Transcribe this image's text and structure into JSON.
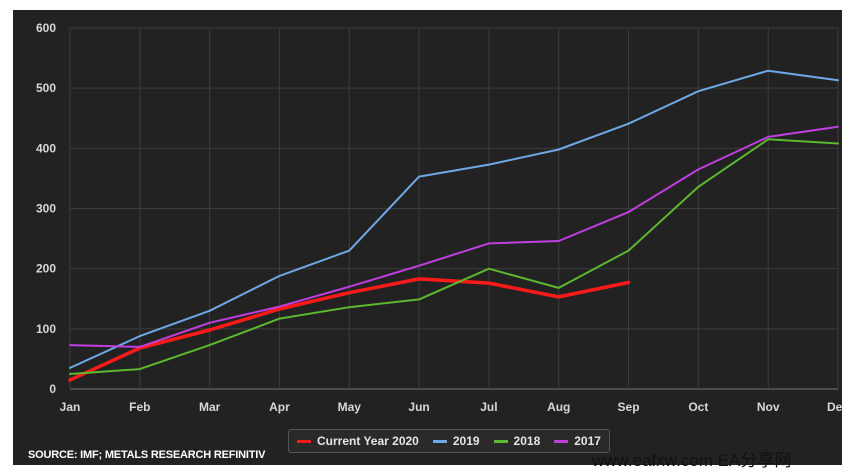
{
  "chart_data": {
    "type": "line",
    "categories": [
      "Jan",
      "Feb",
      "Mar",
      "Apr",
      "May",
      "Jun",
      "Jul",
      "Aug",
      "Sep",
      "Oct",
      "Nov",
      "Dec"
    ],
    "y_ticks": [
      "0",
      "100",
      "200",
      "300",
      "400",
      "500",
      "600"
    ],
    "ylim": [
      0,
      600
    ],
    "grid": true,
    "legend_position": "bottom-center",
    "series": [
      {
        "name": "Current Year 2020",
        "color": "#ff1a1a",
        "values": [
          15,
          68,
          98,
          133,
          160,
          183,
          176,
          153,
          177,
          null,
          null,
          null
        ]
      },
      {
        "name": "2019",
        "color": "#6fa8e6",
        "values": [
          35,
          88,
          130,
          188,
          230,
          353,
          373,
          398,
          441,
          495,
          529,
          513
        ]
      },
      {
        "name": "2018",
        "color": "#5cb82f",
        "values": [
          25,
          33,
          73,
          117,
          136,
          149,
          200,
          168,
          230,
          336,
          415,
          408
        ]
      },
      {
        "name": "2017",
        "color": "#c13ee0",
        "values": [
          73,
          70,
          110,
          137,
          170,
          205,
          242,
          246,
          294,
          365,
          419,
          436
        ]
      }
    ]
  },
  "footer": {
    "source": "SOURCE: IMF; METALS RESEARCH REFINITIV",
    "watermark": "www.eafxw.com   EA分享网"
  }
}
